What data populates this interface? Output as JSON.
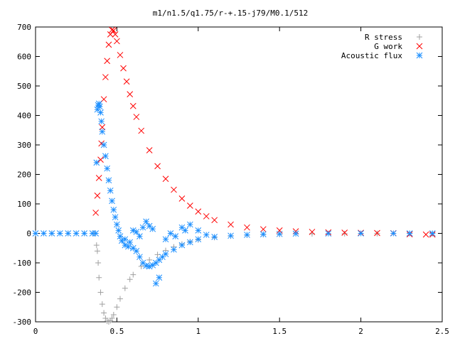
{
  "chart_data": {
    "type": "scatter",
    "title": "m1/n1.5/q1.75/r-+.15-j79/M0.1/512",
    "xlabel": "",
    "ylabel": "",
    "xlim": [
      0,
      2.5
    ],
    "ylim": [
      -300,
      700
    ],
    "x_ticks": [
      0,
      0.5,
      1,
      1.5,
      2,
      2.5
    ],
    "x_tick_labels": [
      "0",
      "0.5",
      "1",
      "1.5",
      "2",
      "2.5"
    ],
    "y_ticks": [
      -300,
      -200,
      -100,
      0,
      100,
      200,
      300,
      400,
      500,
      600,
      700
    ],
    "y_tick_labels": [
      "-300",
      "-200",
      "-100",
      "0",
      "100",
      "200",
      "300",
      "400",
      "500",
      "600",
      "700"
    ],
    "grid": false,
    "legend_position": "top-right",
    "series": [
      {
        "name": "R stress",
        "marker": "plus",
        "color": "#a0a0a0",
        "points": [
          [
            0.0,
            0
          ],
          [
            0.1,
            0
          ],
          [
            0.2,
            0
          ],
          [
            0.3,
            0
          ],
          [
            0.36,
            0
          ],
          [
            0.375,
            -40
          ],
          [
            0.38,
            -60
          ],
          [
            0.385,
            -100
          ],
          [
            0.39,
            -150
          ],
          [
            0.4,
            -200
          ],
          [
            0.41,
            -240
          ],
          [
            0.42,
            -270
          ],
          [
            0.43,
            -288
          ],
          [
            0.44,
            -298
          ],
          [
            0.45,
            -300
          ],
          [
            0.46,
            -296
          ],
          [
            0.47,
            -288
          ],
          [
            0.48,
            -276
          ],
          [
            0.5,
            -250
          ],
          [
            0.52,
            -222
          ],
          [
            0.55,
            -186
          ],
          [
            0.58,
            -156
          ],
          [
            0.6,
            -140
          ],
          [
            0.65,
            -112
          ],
          [
            0.7,
            -90
          ],
          [
            0.75,
            -72
          ],
          [
            0.8,
            -58
          ],
          [
            0.85,
            -46
          ],
          [
            0.9,
            -36
          ],
          [
            0.95,
            -28
          ],
          [
            1.0,
            -22
          ],
          [
            1.1,
            -14
          ],
          [
            1.2,
            -9
          ],
          [
            1.3,
            -6
          ],
          [
            1.4,
            -4
          ],
          [
            1.5,
            -3
          ],
          [
            1.7,
            -1.5
          ],
          [
            1.9,
            -1
          ],
          [
            2.1,
            -0.5
          ],
          [
            2.3,
            -0.3
          ],
          [
            2.44,
            -0.2
          ]
        ]
      },
      {
        "name": "G work",
        "marker": "cross",
        "color": "#ff0000",
        "points": [
          [
            0.37,
            70
          ],
          [
            0.38,
            128
          ],
          [
            0.39,
            188
          ],
          [
            0.4,
            250
          ],
          [
            0.405,
            305
          ],
          [
            0.41,
            360
          ],
          [
            0.42,
            455
          ],
          [
            0.43,
            530
          ],
          [
            0.44,
            585
          ],
          [
            0.45,
            640
          ],
          [
            0.46,
            675
          ],
          [
            0.47,
            690
          ],
          [
            0.48,
            688
          ],
          [
            0.49,
            675
          ],
          [
            0.5,
            652
          ],
          [
            0.52,
            605
          ],
          [
            0.54,
            560
          ],
          [
            0.56,
            515
          ],
          [
            0.58,
            472
          ],
          [
            0.6,
            432
          ],
          [
            0.62,
            395
          ],
          [
            0.65,
            348
          ],
          [
            0.7,
            282
          ],
          [
            0.75,
            228
          ],
          [
            0.8,
            185
          ],
          [
            0.85,
            148
          ],
          [
            0.9,
            118
          ],
          [
            0.95,
            94
          ],
          [
            1.0,
            74
          ],
          [
            1.05,
            58
          ],
          [
            1.1,
            45
          ],
          [
            1.2,
            30
          ],
          [
            1.3,
            20
          ],
          [
            1.4,
            14
          ],
          [
            1.5,
            10
          ],
          [
            1.6,
            7
          ],
          [
            1.7,
            5
          ],
          [
            1.8,
            3.5
          ],
          [
            1.9,
            2.5
          ],
          [
            2.0,
            1.8
          ],
          [
            2.1,
            1.2
          ],
          [
            2.2,
            0.8
          ],
          [
            2.3,
            -3
          ],
          [
            2.4,
            -4
          ],
          [
            2.44,
            -4
          ]
        ]
      },
      {
        "name": "Acoustic flux",
        "marker": "star",
        "color": "#1e90ff",
        "points": [
          [
            0.0,
            0
          ],
          [
            0.05,
            0
          ],
          [
            0.1,
            0
          ],
          [
            0.15,
            0
          ],
          [
            0.2,
            0
          ],
          [
            0.25,
            0
          ],
          [
            0.3,
            0
          ],
          [
            0.35,
            0
          ],
          [
            0.37,
            0
          ],
          [
            0.375,
            240
          ],
          [
            0.38,
            420
          ],
          [
            0.385,
            435
          ],
          [
            0.39,
            440
          ],
          [
            0.395,
            430
          ],
          [
            0.4,
            410
          ],
          [
            0.405,
            380
          ],
          [
            0.41,
            345
          ],
          [
            0.42,
            300
          ],
          [
            0.43,
            262
          ],
          [
            0.44,
            220
          ],
          [
            0.45,
            180
          ],
          [
            0.46,
            145
          ],
          [
            0.47,
            110
          ],
          [
            0.48,
            80
          ],
          [
            0.49,
            55
          ],
          [
            0.5,
            30
          ],
          [
            0.51,
            10
          ],
          [
            0.52,
            -10
          ],
          [
            0.53,
            -25
          ],
          [
            0.55,
            -40
          ],
          [
            0.57,
            -45
          ],
          [
            0.6,
            -50
          ],
          [
            0.62,
            -60
          ],
          [
            0.64,
            -80
          ],
          [
            0.66,
            -100
          ],
          [
            0.68,
            -110
          ],
          [
            0.7,
            -112
          ],
          [
            0.72,
            -108
          ],
          [
            0.74,
            -100
          ],
          [
            0.76,
            -90
          ],
          [
            0.78,
            -80
          ],
          [
            0.8,
            -70
          ],
          [
            0.85,
            -55
          ],
          [
            0.9,
            -40
          ],
          [
            0.95,
            -30
          ],
          [
            1.0,
            -20
          ],
          [
            1.1,
            -12
          ],
          [
            1.2,
            -8
          ],
          [
            1.3,
            -5
          ],
          [
            1.4,
            -3
          ],
          [
            1.5,
            -2
          ],
          [
            1.6,
            -1
          ],
          [
            1.8,
            -0.5
          ],
          [
            2.0,
            0
          ],
          [
            2.2,
            0
          ],
          [
            2.3,
            0
          ],
          [
            2.44,
            0
          ],
          [
            0.55,
            -20
          ],
          [
            0.58,
            -30
          ],
          [
            0.6,
            10
          ],
          [
            0.62,
            5
          ],
          [
            0.64,
            -10
          ],
          [
            0.66,
            20
          ],
          [
            0.68,
            40
          ],
          [
            0.7,
            25
          ],
          [
            0.72,
            15
          ],
          [
            0.74,
            -170
          ],
          [
            0.76,
            -150
          ],
          [
            0.8,
            -20
          ],
          [
            0.83,
            0
          ],
          [
            0.86,
            -10
          ],
          [
            0.9,
            20
          ],
          [
            0.92,
            10
          ],
          [
            0.95,
            30
          ],
          [
            1.0,
            10
          ],
          [
            1.05,
            -5
          ]
        ]
      }
    ]
  }
}
